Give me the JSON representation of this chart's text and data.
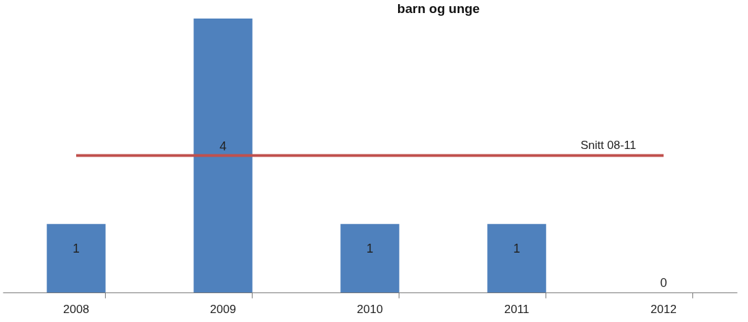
{
  "chart_data": {
    "type": "bar",
    "title": "barn og unge",
    "categories": [
      "2008",
      "2009",
      "2010",
      "2011",
      "2012"
    ],
    "values": [
      1,
      4,
      1,
      1,
      0
    ],
    "color": "#4f81bd",
    "ylim": [
      0,
      4
    ],
    "tick_labels": "x",
    "data_labels": true,
    "grid": false,
    "ref_lines": [
      {
        "axis": "y",
        "value": 2,
        "label": "Snitt 08-11",
        "color": "#c0504d"
      }
    ]
  }
}
